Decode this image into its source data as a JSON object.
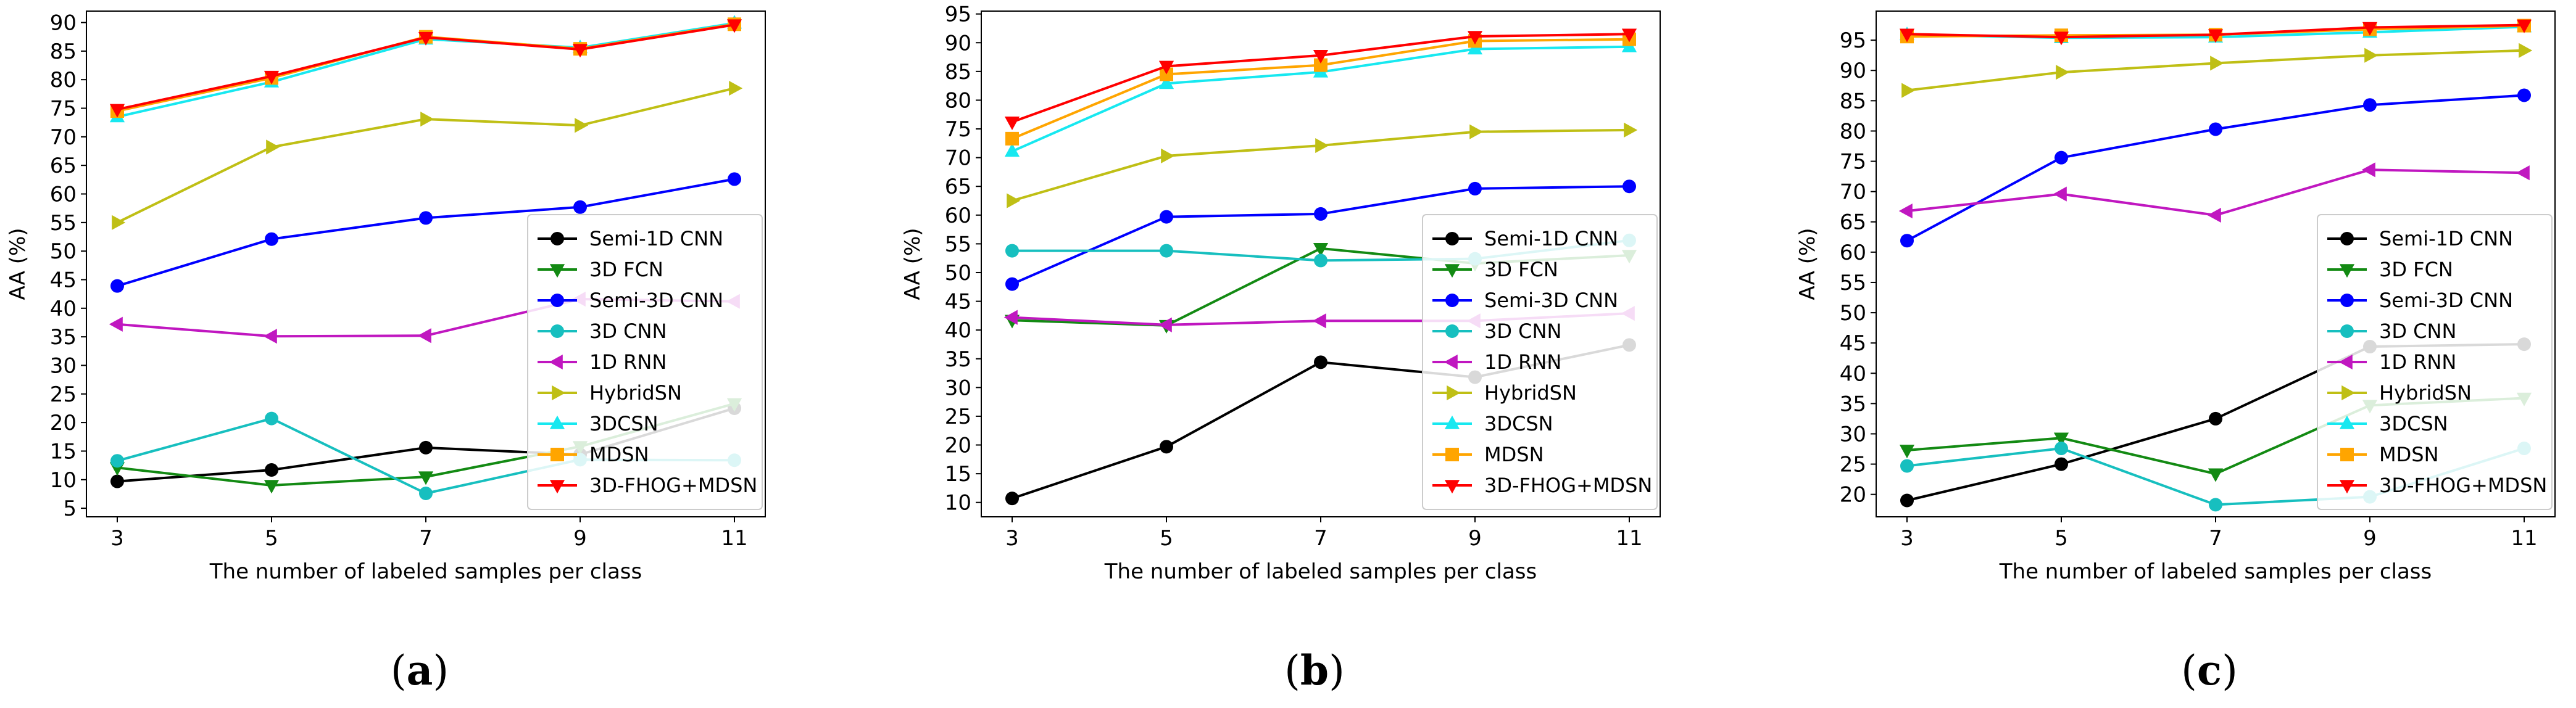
{
  "figure": {
    "panel_labels": [
      "a",
      "b",
      "c"
    ]
  },
  "legend_entries": [
    "Semi-1D CNN",
    "3D FCN",
    "Semi-3D CNN",
    "3D CNN",
    "1D RNN",
    "HybridSN",
    "3DCSN",
    "MDSN",
    "3D-FHOG+MDSN"
  ],
  "colors": {
    "Semi-1D CNN": "#000000",
    "3D FCN": "#138a13",
    "Semi-3D CNN": "#0000ff",
    "3D CNN": "#17bfbf",
    "1D RNN": "#c017c0",
    "HybridSN": "#bfbf15",
    "3DCSN": "#17e8f0",
    "MDSN": "#ffa500",
    "3D-FHOG+MDSN": "#ff0000"
  },
  "markers": {
    "Semi-1D CNN": "circle",
    "3D FCN": "triangle-down",
    "Semi-3D CNN": "circle",
    "3D CNN": "circle",
    "1D RNN": "triangle-left",
    "HybridSN": "triangle-right",
    "3DCSN": "triangle-up",
    "MDSN": "square",
    "3D-FHOG+MDSN": "triangle-down"
  },
  "chart_data": [
    {
      "type": "line",
      "panel": "a",
      "xlabel": "The number of labeled samples per class",
      "ylabel": "AA (%)",
      "x": [
        3,
        5,
        7,
        9,
        11
      ],
      "xlim": [
        2.6,
        11.4
      ],
      "ylim": [
        3.5,
        92
      ],
      "yticks": [
        5,
        10,
        15,
        20,
        25,
        30,
        35,
        40,
        45,
        50,
        55,
        60,
        65,
        70,
        75,
        80,
        85,
        90
      ],
      "legend_position": "lower right",
      "series": [
        {
          "name": "Semi-1D CNN",
          "values": [
            9.7,
            11.7,
            15.6,
            14.4,
            22.5
          ]
        },
        {
          "name": "3D FCN",
          "values": [
            12.1,
            9.0,
            10.5,
            15.8,
            23.3
          ]
        },
        {
          "name": "Semi-3D CNN",
          "values": [
            43.9,
            52.1,
            55.8,
            57.7,
            62.6
          ]
        },
        {
          "name": "3D CNN",
          "values": [
            13.3,
            20.7,
            7.6,
            13.5,
            13.4
          ]
        },
        {
          "name": "1D RNN",
          "values": [
            37.2,
            35.1,
            35.2,
            41.6,
            41.2
          ]
        },
        {
          "name": "HybridSN",
          "values": [
            55.0,
            68.2,
            73.1,
            72.0,
            78.5
          ]
        },
        {
          "name": "3DCSN",
          "values": [
            73.5,
            79.6,
            87.1,
            85.6,
            89.9
          ]
        },
        {
          "name": "MDSN",
          "values": [
            74.5,
            80.3,
            87.5,
            85.4,
            89.7
          ]
        },
        {
          "name": "3D-FHOG+MDSN",
          "values": [
            74.8,
            80.6,
            87.4,
            85.3,
            89.6
          ]
        }
      ]
    },
    {
      "type": "line",
      "panel": "b",
      "xlabel": "The number of labeled samples per class",
      "ylabel": "AA (%)",
      "x": [
        3,
        5,
        7,
        9,
        11
      ],
      "xlim": [
        2.6,
        11.4
      ],
      "ylim": [
        7.5,
        95.5
      ],
      "yticks": [
        10,
        15,
        20,
        25,
        30,
        35,
        40,
        45,
        50,
        55,
        60,
        65,
        70,
        75,
        80,
        85,
        90,
        95
      ],
      "legend_position": "lower right",
      "series": [
        {
          "name": "Semi-1D CNN",
          "values": [
            10.7,
            19.7,
            34.4,
            31.8,
            37.4
          ]
        },
        {
          "name": "3D FCN",
          "values": [
            41.7,
            40.8,
            54.2,
            51.6,
            53.0
          ]
        },
        {
          "name": "Semi-3D CNN",
          "values": [
            48.0,
            59.7,
            60.2,
            64.6,
            65.0
          ]
        },
        {
          "name": "3D CNN",
          "values": [
            53.8,
            53.8,
            52.1,
            52.4,
            55.6
          ]
        },
        {
          "name": "1D RNN",
          "values": [
            42.2,
            40.9,
            41.6,
            41.6,
            42.9
          ]
        },
        {
          "name": "HybridSN",
          "values": [
            62.5,
            70.3,
            72.1,
            74.5,
            74.8
          ]
        },
        {
          "name": "3DCSN",
          "values": [
            71.1,
            82.9,
            84.9,
            88.9,
            89.3
          ]
        },
        {
          "name": "MDSN",
          "values": [
            73.3,
            84.5,
            86.1,
            90.3,
            90.6
          ]
        },
        {
          "name": "3D-FHOG+MDSN",
          "values": [
            76.2,
            85.9,
            87.8,
            91.1,
            91.5
          ]
        }
      ]
    },
    {
      "type": "line",
      "panel": "c",
      "xlabel": "The number of labeled samples per class",
      "ylabel": "AA (%)",
      "x": [
        3,
        5,
        7,
        9,
        11
      ],
      "xlim": [
        2.6,
        11.4
      ],
      "ylim": [
        16.3,
        99.8
      ],
      "yticks": [
        20,
        25,
        30,
        35,
        40,
        45,
        50,
        55,
        60,
        65,
        70,
        75,
        80,
        85,
        90,
        95
      ],
      "legend_position": "lower right",
      "series": [
        {
          "name": "Semi-1D CNN",
          "values": [
            19.0,
            25.0,
            32.5,
            44.4,
            44.8
          ]
        },
        {
          "name": "3D FCN",
          "values": [
            27.3,
            29.3,
            23.4,
            34.7,
            35.9
          ]
        },
        {
          "name": "Semi-3D CNN",
          "values": [
            61.9,
            75.6,
            80.3,
            84.3,
            85.9
          ]
        },
        {
          "name": "3D CNN",
          "values": [
            24.7,
            27.6,
            18.3,
            19.6,
            27.6
          ]
        },
        {
          "name": "1D RNN",
          "values": [
            66.8,
            69.6,
            66.1,
            73.6,
            73.1
          ]
        },
        {
          "name": "HybridSN",
          "values": [
            86.7,
            89.7,
            91.2,
            92.5,
            93.3
          ]
        },
        {
          "name": "3DCSN",
          "values": [
            95.9,
            95.4,
            95.5,
            96.3,
            97.2
          ]
        },
        {
          "name": "MDSN",
          "values": [
            95.6,
            95.8,
            95.9,
            96.8,
            97.4
          ]
        },
        {
          "name": "3D-FHOG+MDSN",
          "values": [
            96.0,
            95.5,
            95.9,
            97.1,
            97.5
          ]
        }
      ]
    }
  ]
}
